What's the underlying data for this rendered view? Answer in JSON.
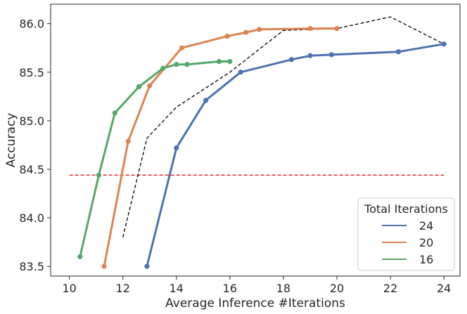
{
  "chart_data": {
    "type": "line",
    "title": "",
    "xlabel": "Average Inference #Iterations",
    "ylabel": "Accuracy",
    "xlim": [
      9.3,
      24.6
    ],
    "ylim": [
      83.4,
      86.2
    ],
    "xticks": [
      10,
      12,
      14,
      16,
      18,
      20,
      22,
      24
    ],
    "yticks": [
      83.5,
      84.0,
      84.5,
      85.0,
      85.5,
      86.0
    ],
    "xtick_labels": [
      "10",
      "12",
      "14",
      "16",
      "18",
      "20",
      "22",
      "24"
    ],
    "ytick_labels": [
      "83.5",
      "84.0",
      "84.5",
      "85.0",
      "85.5",
      "86.0"
    ],
    "grid": false,
    "legend": {
      "title": "Total Iterations",
      "placement": "lower-right"
    },
    "series": [
      {
        "name": "24",
        "color": "#4c72b0",
        "x": [
          12.9,
          14.0,
          15.1,
          16.4,
          18.3,
          19.0,
          19.8,
          22.3,
          24.0
        ],
        "y": [
          83.5,
          84.72,
          85.21,
          85.5,
          85.63,
          85.67,
          85.68,
          85.71,
          85.79
        ]
      },
      {
        "name": "20",
        "color": "#dd8452",
        "x": [
          11.3,
          12.2,
          13.0,
          14.2,
          15.9,
          16.6,
          17.1,
          19.0,
          20.0
        ],
        "y": [
          83.5,
          84.79,
          85.36,
          85.75,
          85.87,
          85.91,
          85.94,
          85.95,
          85.95
        ]
      },
      {
        "name": "16",
        "color": "#55a868",
        "x": [
          10.4,
          11.1,
          11.7,
          12.6,
          13.5,
          14.0,
          14.4,
          15.6,
          16.0
        ],
        "y": [
          83.6,
          84.44,
          85.08,
          85.35,
          85.54,
          85.58,
          85.58,
          85.61,
          85.61
        ]
      }
    ],
    "reference_lines": [
      {
        "kind": "horizontal",
        "style": "dashed",
        "color": "#e8000b",
        "y": 84.44,
        "x": [
          10.0,
          24.0
        ]
      },
      {
        "kind": "polyline",
        "style": "dashed",
        "color": "#000000",
        "x": [
          12.0,
          12.9,
          14.0,
          16.0,
          18.0,
          20.0,
          22.0,
          24.0
        ],
        "y": [
          83.8,
          84.82,
          85.14,
          85.5,
          85.93,
          85.95,
          86.07,
          85.79
        ]
      }
    ]
  }
}
